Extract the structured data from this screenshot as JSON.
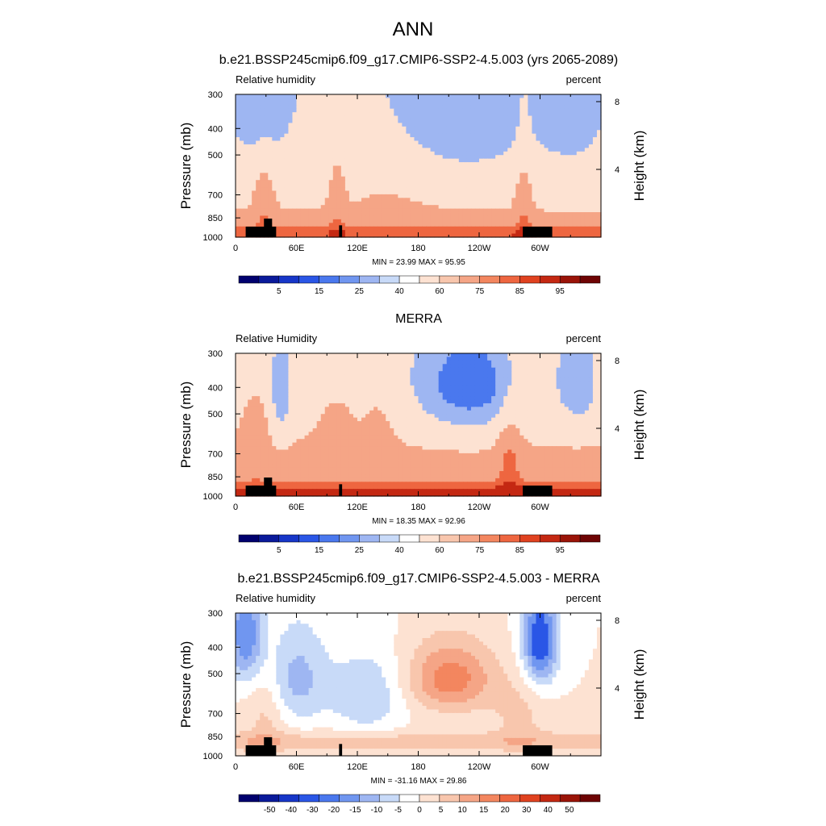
{
  "figure": {
    "title": "ANN"
  },
  "chart_data": [
    {
      "type": "heatmap",
      "title": "b.e21.BSSP245cmip6.f09_g17.CMIP6-SSP2-4.5.003 (yrs 2065-2089)",
      "left_label": "Relative humidity",
      "right_label": "percent",
      "ylabel": "Pressure (mb)",
      "ylabel_right": "Height (km)",
      "x_ticks": [
        "0",
        "60E",
        "120E",
        "180",
        "120W",
        "60W"
      ],
      "x_tick_values": [
        0,
        60,
        120,
        180,
        240,
        300
      ],
      "xlim": [
        0,
        360
      ],
      "y_ticks": [
        "300",
        "400",
        "500",
        "700",
        "850",
        "1000"
      ],
      "y_tick_values": [
        300,
        400,
        500,
        700,
        850,
        1000
      ],
      "ylim": [
        1000,
        300
      ],
      "y_scale": "log",
      "right_ticks": [
        "8",
        "4"
      ],
      "right_tick_values": [
        8,
        4
      ],
      "stats_text": "MIN =  23.99  MAX =  95.95",
      "min": 23.99,
      "max": 95.95,
      "colorbar_labels": [
        "5",
        "15",
        "25",
        "40",
        "60",
        "75",
        "85",
        "95"
      ],
      "colorbar_levels": [
        5,
        15,
        25,
        40,
        60,
        75,
        85,
        95
      ],
      "colormap": "full",
      "field": "model"
    },
    {
      "type": "heatmap",
      "title": "MERRA",
      "left_label": "Relative Humidity",
      "right_label": "percent",
      "ylabel": "Pressure (mb)",
      "ylabel_right": "Height (km)",
      "x_ticks": [
        "0",
        "60E",
        "120E",
        "180",
        "120W",
        "60W"
      ],
      "x_tick_values": [
        0,
        60,
        120,
        180,
        240,
        300
      ],
      "xlim": [
        0,
        360
      ],
      "y_ticks": [
        "300",
        "400",
        "500",
        "700",
        "850",
        "1000"
      ],
      "y_tick_values": [
        300,
        400,
        500,
        700,
        850,
        1000
      ],
      "ylim": [
        1000,
        300
      ],
      "y_scale": "log",
      "right_ticks": [
        "8",
        "4"
      ],
      "right_tick_values": [
        8,
        4
      ],
      "stats_text": "MIN =  18.35  MAX =  92.96",
      "min": 18.35,
      "max": 92.96,
      "colorbar_labels": [
        "5",
        "15",
        "25",
        "40",
        "60",
        "75",
        "85",
        "95"
      ],
      "colorbar_levels": [
        5,
        15,
        25,
        40,
        60,
        75,
        85,
        95
      ],
      "colormap": "full",
      "field": "obs"
    },
    {
      "type": "heatmap",
      "title": "b.e21.BSSP245cmip6.f09_g17.CMIP6-SSP2-4.5.003 - MERRA",
      "left_label": "Relative humidity",
      "right_label": "percent",
      "ylabel": "Pressure (mb)",
      "ylabel_right": "Height (km)",
      "x_ticks": [
        "0",
        "60E",
        "120E",
        "180",
        "120W",
        "60W"
      ],
      "x_tick_values": [
        0,
        60,
        120,
        180,
        240,
        300
      ],
      "xlim": [
        0,
        360
      ],
      "y_ticks": [
        "300",
        "400",
        "500",
        "700",
        "850",
        "1000"
      ],
      "y_tick_values": [
        300,
        400,
        500,
        700,
        850,
        1000
      ],
      "ylim": [
        1000,
        300
      ],
      "y_scale": "log",
      "right_ticks": [
        "8",
        "4"
      ],
      "right_tick_values": [
        8,
        4
      ],
      "stats_text": "MIN = -31.16  MAX =  29.86",
      "min": -31.16,
      "max": 29.86,
      "colorbar_labels": [
        "-50",
        "-40",
        "-30",
        "-20",
        "-15",
        "-10",
        "-5",
        "0",
        "5",
        "10",
        "15",
        "20",
        "30",
        "40",
        "50"
      ],
      "colorbar_levels": [
        -50,
        -40,
        -30,
        -20,
        -15,
        -10,
        -5,
        0,
        5,
        10,
        15,
        20,
        30,
        40,
        50
      ],
      "colormap": "full",
      "field": "diff"
    }
  ],
  "colormap": {
    "full": [
      "#00006e",
      "#0a1a9a",
      "#1736c8",
      "#2a56e6",
      "#4a78ee",
      "#7096f0",
      "#9eb6f2",
      "#c8daf8",
      "#ffffff",
      "#fde2d2",
      "#f8c6ad",
      "#f5a586",
      "#f3865f",
      "#ee6640",
      "#e04220",
      "#c42812",
      "#9a1408",
      "#6e0404"
    ]
  }
}
